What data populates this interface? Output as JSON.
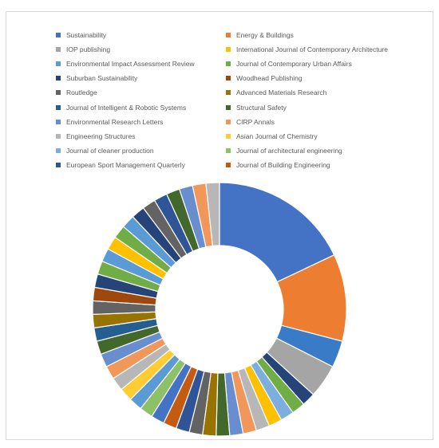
{
  "chart_data": {
    "type": "donut",
    "legend_position": "top",
    "series": [
      {
        "name": "Sustainability",
        "value": 21,
        "color": "#4472C4"
      },
      {
        "name": "Energy & Buildings",
        "value": 13,
        "color": "#ED7D31"
      },
      {
        "name": "IOP publishing",
        "value": 4,
        "color": "#A5A5A5"
      },
      {
        "name": "International Journal of Contemporary Architecture",
        "value": 0,
        "color": "#FFC000"
      },
      {
        "name": "Environmental Impact Assessment Review",
        "value": 0,
        "color": "#5B9BD5"
      },
      {
        "name": "Journal of Contemporary Urban Affairs",
        "value": 0,
        "color": "#70AD47"
      },
      {
        "name": "Suburban Sustainability",
        "value": 0,
        "color": "#264478"
      },
      {
        "name": "Woodhead Publishing",
        "value": 0,
        "color": "#9E480E"
      },
      {
        "name": "Routledge",
        "value": 0,
        "color": "#636363"
      },
      {
        "name": "Advanced Materials Research",
        "value": 0,
        "color": "#997300"
      },
      {
        "name": "Journal of Intelligent & Robotic Systems",
        "value": 0,
        "color": "#255E91"
      },
      {
        "name": "Structural Safety",
        "value": 0,
        "color": "#43682B"
      },
      {
        "name": "Environmental Research Letters",
        "value": 0,
        "color": "#698ED0"
      },
      {
        "name": "CIRP Annals",
        "value": 0,
        "color": "#F1975A"
      },
      {
        "name": "Engineering Structures",
        "value": 0,
        "color": "#B7B7B7"
      },
      {
        "name": "Asian Journal of Chemistry",
        "value": 0,
        "color": "#FFCD33"
      },
      {
        "name": "Journal of cleaner production",
        "value": 0,
        "color": "#7CAFDD"
      },
      {
        "name": "Journal of architectural engineering",
        "value": 0,
        "color": "#8CC168"
      },
      {
        "name": "European Sport Management Quarterly",
        "value": 0,
        "color": "#2F5597"
      },
      {
        "name": "Journal of Building Engineering",
        "value": 0,
        "color": "#C55A11"
      }
    ],
    "slice_values": [
      21,
      13,
      4,
      5,
      2,
      2,
      2,
      2,
      2,
      2,
      2,
      2,
      2,
      2,
      2,
      2,
      2,
      2,
      2,
      2,
      2,
      2,
      2,
      2,
      2,
      2,
      2,
      2,
      2,
      2,
      2,
      2,
      2,
      2,
      2,
      2,
      2,
      2,
      2,
      2,
      2
    ],
    "slice_colors": [
      "#4472C4",
      "#ED7D31",
      "#3A7BC8",
      "#A5A5A5",
      "#264478",
      "#70AD47",
      "#7CAFDD",
      "#FFC000",
      "#B7B7B7",
      "#F1975A",
      "#698ED0",
      "#43682B",
      "#997300",
      "#636363",
      "#2F5597",
      "#C55A11",
      "#4472C4",
      "#8CC168",
      "#5B9BD5",
      "#FFCD33",
      "#B7B7B7",
      "#F1975A",
      "#698ED0",
      "#43682B",
      "#255E91",
      "#997300",
      "#636363",
      "#9E480E",
      "#264478",
      "#70AD47",
      "#5B9BD5",
      "#FFC000",
      "#70AD47",
      "#5B9BD5",
      "#264478",
      "#636363",
      "#2F5597",
      "#43682B",
      "#698ED0",
      "#F1975A",
      "#B7B7B7"
    ]
  }
}
